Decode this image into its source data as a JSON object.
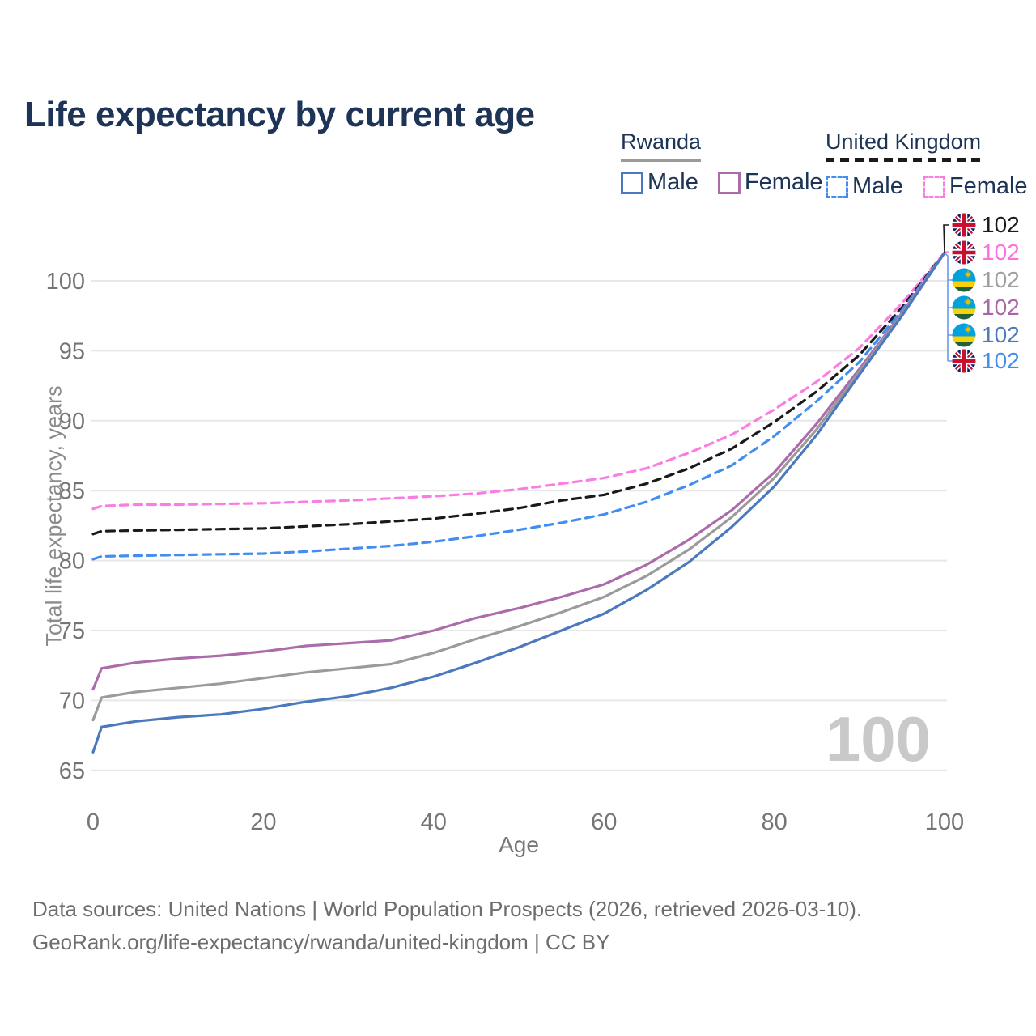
{
  "title": "Life expectancy by current age",
  "legend": {
    "groups": [
      {
        "name": "Rwanda",
        "underline": "solid",
        "underline_color": "#9a9a9a",
        "items": [
          {
            "label": "Male",
            "color": "#4b79bd",
            "dashed": false
          },
          {
            "label": "Female",
            "color": "#ac6cab",
            "dashed": false
          }
        ]
      },
      {
        "name": "United Kingdom",
        "underline": "dashed",
        "underline_color": "#1a1a1a",
        "items": [
          {
            "label": "Male",
            "color": "#418df2",
            "dashed": true
          },
          {
            "label": "Female",
            "color": "#fb7ce2",
            "dashed": true
          }
        ]
      }
    ]
  },
  "axis": {
    "x_title": "Age",
    "y_title": "Total life expectancy, years"
  },
  "watermark": "100",
  "end_labels": [
    {
      "flag": "uk",
      "value": "102",
      "color": "#1a1a1a"
    },
    {
      "flag": "uk",
      "value": "102",
      "color": "#ff70dd"
    },
    {
      "flag": "rwanda",
      "value": "102",
      "color": "#9e9e9e"
    },
    {
      "flag": "rwanda",
      "value": "102",
      "color": "#a868a8"
    },
    {
      "flag": "rwanda",
      "value": "102",
      "color": "#4b79bd"
    },
    {
      "flag": "uk",
      "value": "102",
      "color": "#418df2"
    }
  ],
  "footer": {
    "line1": "Data sources: United Nations | World Population Prospects (2026, retrieved 2026-03-10).",
    "line2": "GeoRank.org/life-expectancy/rwanda/united-kingdom | CC BY"
  },
  "chart_data": {
    "type": "line",
    "title": "Life expectancy by current age",
    "xlabel": "Age",
    "ylabel": "Total life expectancy, years",
    "xlim": [
      0,
      100
    ],
    "ylim": [
      64.5,
      103
    ],
    "x_ticks": [
      0,
      20,
      40,
      60,
      80,
      100
    ],
    "y_ticks": [
      65,
      70,
      75,
      80,
      85,
      90,
      95,
      100
    ],
    "grid": "horizontal-only",
    "legend_position": "top-right",
    "x": [
      0,
      1,
      5,
      10,
      15,
      20,
      25,
      30,
      35,
      40,
      45,
      50,
      55,
      60,
      65,
      70,
      75,
      80,
      85,
      90,
      95,
      100
    ],
    "series": [
      {
        "name": "United Kingdom Female",
        "country": "United Kingdom",
        "sex": "Female",
        "color": "#fb7ce2",
        "dash": true,
        "values": [
          83.7,
          83.9,
          84.0,
          84.0,
          84.05,
          84.1,
          84.2,
          84.3,
          84.45,
          84.6,
          84.8,
          85.1,
          85.5,
          85.9,
          86.6,
          87.7,
          89.0,
          90.8,
          92.8,
          95.2,
          98.4,
          102
        ]
      },
      {
        "name": "United Kingdom Combined",
        "country": "United Kingdom",
        "sex": "Both",
        "color": "#1a1a1a",
        "dash": true,
        "values": [
          81.9,
          82.1,
          82.15,
          82.2,
          82.25,
          82.3,
          82.45,
          82.6,
          82.8,
          83.0,
          83.35,
          83.75,
          84.3,
          84.7,
          85.5,
          86.6,
          88.0,
          89.9,
          92.1,
          94.7,
          98.1,
          102
        ]
      },
      {
        "name": "United Kingdom Male",
        "country": "United Kingdom",
        "sex": "Male",
        "color": "#418df2",
        "dash": true,
        "values": [
          80.1,
          80.3,
          80.35,
          80.4,
          80.45,
          80.5,
          80.65,
          80.85,
          81.05,
          81.35,
          81.75,
          82.2,
          82.7,
          83.3,
          84.2,
          85.4,
          86.8,
          88.9,
          91.4,
          94.2,
          97.9,
          102
        ]
      },
      {
        "name": "Rwanda Female",
        "country": "Rwanda",
        "sex": "Female",
        "color": "#ac6cab",
        "dash": false,
        "values": [
          70.8,
          72.3,
          72.7,
          73.0,
          73.2,
          73.5,
          73.9,
          74.1,
          74.3,
          75.0,
          75.9,
          76.6,
          77.4,
          78.3,
          79.7,
          81.5,
          83.6,
          86.3,
          89.8,
          93.7,
          97.7,
          102
        ]
      },
      {
        "name": "Rwanda Combined",
        "country": "Rwanda",
        "sex": "Both",
        "color": "#9b9b9b",
        "dash": false,
        "values": [
          68.6,
          70.2,
          70.6,
          70.9,
          71.2,
          71.6,
          72.0,
          72.3,
          72.6,
          73.4,
          74.4,
          75.3,
          76.3,
          77.4,
          78.9,
          80.8,
          83.1,
          85.9,
          89.4,
          93.5,
          97.6,
          102
        ]
      },
      {
        "name": "Rwanda Male",
        "country": "Rwanda",
        "sex": "Male",
        "color": "#4b79bd",
        "dash": false,
        "values": [
          66.3,
          68.1,
          68.5,
          68.8,
          69.0,
          69.4,
          69.9,
          70.3,
          70.9,
          71.7,
          72.7,
          73.8,
          75.0,
          76.2,
          77.9,
          79.9,
          82.4,
          85.3,
          89.0,
          93.3,
          97.5,
          102
        ]
      }
    ],
    "end_value_labels": [
      102,
      102,
      102,
      102,
      102,
      102
    ]
  }
}
